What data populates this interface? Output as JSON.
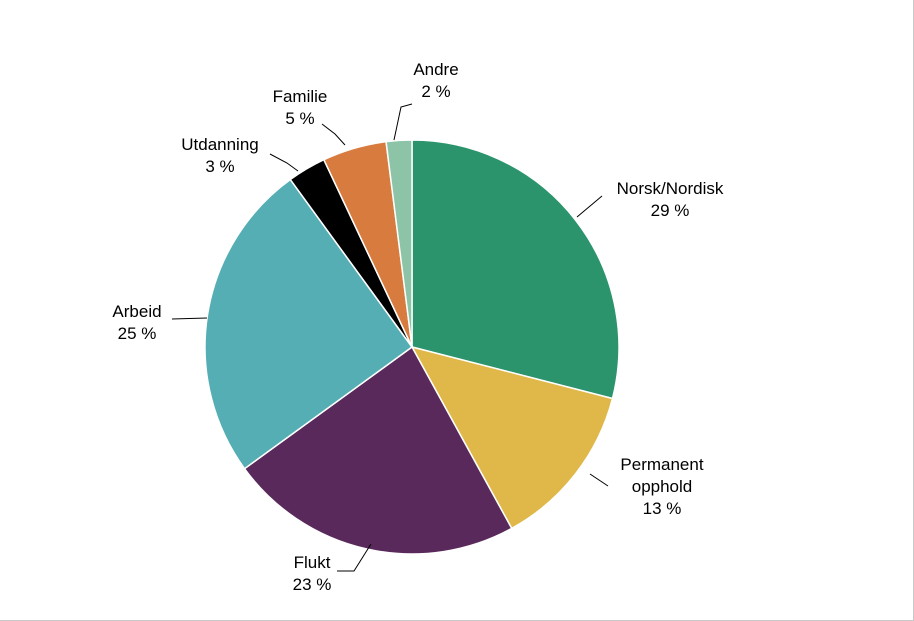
{
  "chart_data": {
    "type": "pie",
    "title": "",
    "start_angle": "top, clockwise",
    "series": [
      {
        "name": "",
        "slices": [
          {
            "label": "Norsk/Nordisk",
            "value_label": "29 %",
            "value": 29,
            "color": "#2b946c"
          },
          {
            "label": "Permanent opphold",
            "value_label": "13 %",
            "value": 13,
            "color": "#e0b84a"
          },
          {
            "label": "Flukt",
            "value_label": "23 %",
            "value": 23,
            "color": "#58295a"
          },
          {
            "label": "Arbeid",
            "value_label": "25 %",
            "value": 25,
            "color": "#55aeb4"
          },
          {
            "label": "Utdanning",
            "value_label": "3 %",
            "value": 3,
            "color": "#000000"
          },
          {
            "label": "Familie",
            "value_label": "5 %",
            "value": 5,
            "color": "#d87b3e"
          },
          {
            "label": "Andre",
            "value_label": "2 %",
            "value": 2,
            "color": "#8dc4a8"
          }
        ]
      }
    ],
    "legend": "none (labels with leader lines)"
  }
}
